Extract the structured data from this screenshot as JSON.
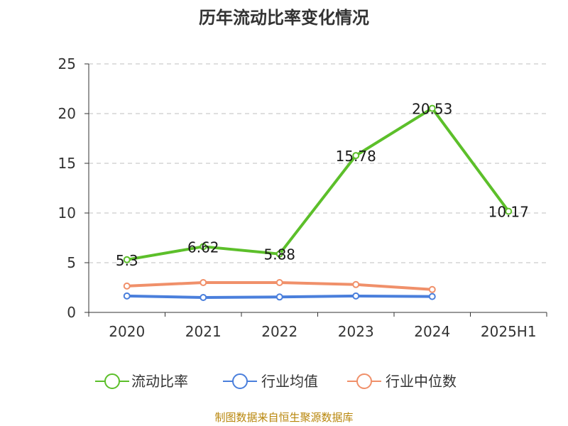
{
  "chart_data": {
    "type": "line",
    "title": "历年流动比率变化情况",
    "categories": [
      "2020",
      "2021",
      "2022",
      "2023",
      "2024",
      "2025H1"
    ],
    "ylim": [
      0,
      25
    ],
    "yticks": [
      "0",
      "5",
      "10",
      "15",
      "20",
      "25"
    ],
    "grid": true,
    "legend_position": "bottom",
    "series": [
      {
        "name": "流动比率",
        "color": "#5cbf2a",
        "values": [
          5.3,
          6.62,
          5.88,
          15.78,
          20.53,
          10.17
        ],
        "labels": [
          "5.3",
          "6.62",
          "5.88",
          "15.78",
          "20.53",
          "10.17"
        ]
      },
      {
        "name": "行业均值",
        "color": "#4a7fdc",
        "values": [
          1.65,
          1.5,
          1.55,
          1.65,
          1.6,
          null
        ]
      },
      {
        "name": "行业中位数",
        "color": "#f0906a",
        "values": [
          2.65,
          3.0,
          3.0,
          2.8,
          2.3,
          null
        ]
      }
    ]
  },
  "source": "制图数据来自恒生聚源数据库"
}
